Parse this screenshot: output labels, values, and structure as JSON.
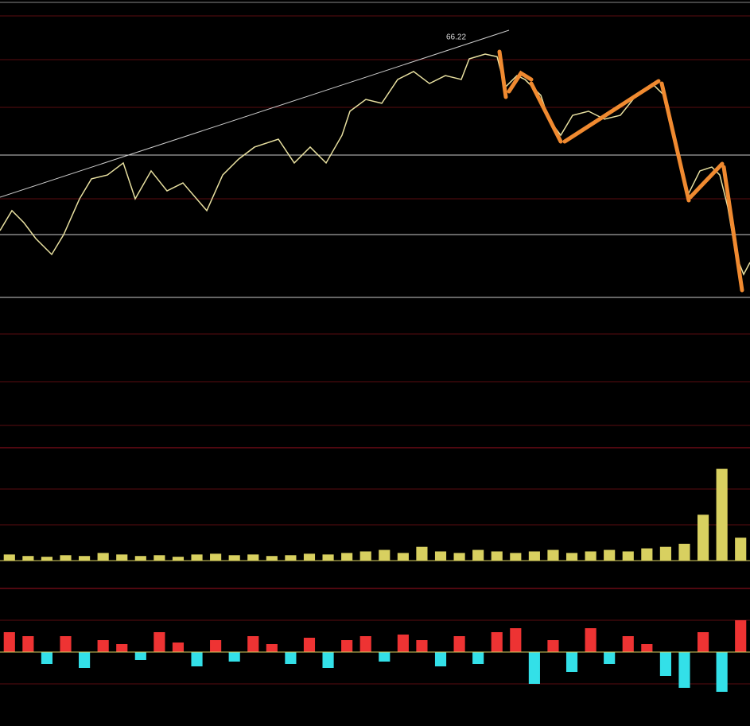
{
  "chart_data": [
    {
      "type": "line",
      "annotation": "66.22",
      "color": "#e8e0a0",
      "x": [
        0,
        15,
        30,
        45,
        65,
        80,
        100,
        115,
        135,
        155,
        170,
        190,
        210,
        230,
        260,
        280,
        300,
        320,
        350,
        370,
        390,
        410,
        430,
        440,
        460,
        480,
        500,
        520,
        540,
        560,
        580,
        590,
        610,
        625,
        635,
        650,
        660,
        680,
        690,
        705,
        720,
        740,
        760,
        780,
        800,
        820,
        835,
        850,
        865,
        880,
        895,
        905,
        915,
        925,
        935,
        943
      ],
      "values": [
        58.0,
        58.93,
        58.37,
        57.63,
        56.89,
        57.81,
        59.48,
        60.41,
        60.59,
        61.15,
        59.48,
        60.78,
        59.85,
        60.22,
        58.93,
        60.59,
        61.33,
        61.89,
        62.26,
        61.15,
        61.89,
        61.15,
        62.44,
        63.56,
        64.11,
        63.93,
        65.04,
        65.41,
        64.85,
        65.22,
        65.04,
        66.0,
        66.22,
        66.1,
        64.67,
        65.22,
        65.04,
        64.3,
        63.19,
        62.44,
        63.37,
        63.56,
        63.19,
        63.37,
        64.3,
        64.85,
        64.3,
        62.07,
        59.67,
        60.78,
        60.96,
        60.59,
        59.11,
        56.89,
        55.96,
        56.52
      ],
      "xlim": [
        0,
        943
      ],
      "ylim": [
        48,
        68
      ]
    },
    {
      "type": "bar",
      "color": "#d8d060",
      "values": [
        8,
        6,
        5,
        7,
        6,
        10,
        8,
        6,
        7,
        5,
        8,
        9,
        7,
        8,
        6,
        7,
        9,
        8,
        10,
        12,
        14,
        10,
        18,
        12,
        10,
        14,
        12,
        10,
        12,
        14,
        10,
        12,
        14,
        12,
        16,
        18,
        22,
        60,
        120,
        30
      ],
      "ylim": [
        0,
        130
      ]
    },
    {
      "type": "bar",
      "color": "#ee3333",
      "negative_color": "#33e0e8",
      "values": [
        25,
        20,
        -15,
        20,
        -20,
        15,
        10,
        -10,
        25,
        12,
        -18,
        15,
        -12,
        20,
        10,
        -15,
        18,
        -20,
        15,
        20,
        -12,
        22,
        15,
        -18,
        20,
        -15,
        25,
        30,
        -40,
        15,
        -25,
        30,
        -15,
        20,
        10,
        -30,
        -45,
        25,
        -50,
        40
      ],
      "ylim": [
        -60,
        60
      ]
    }
  ]
}
